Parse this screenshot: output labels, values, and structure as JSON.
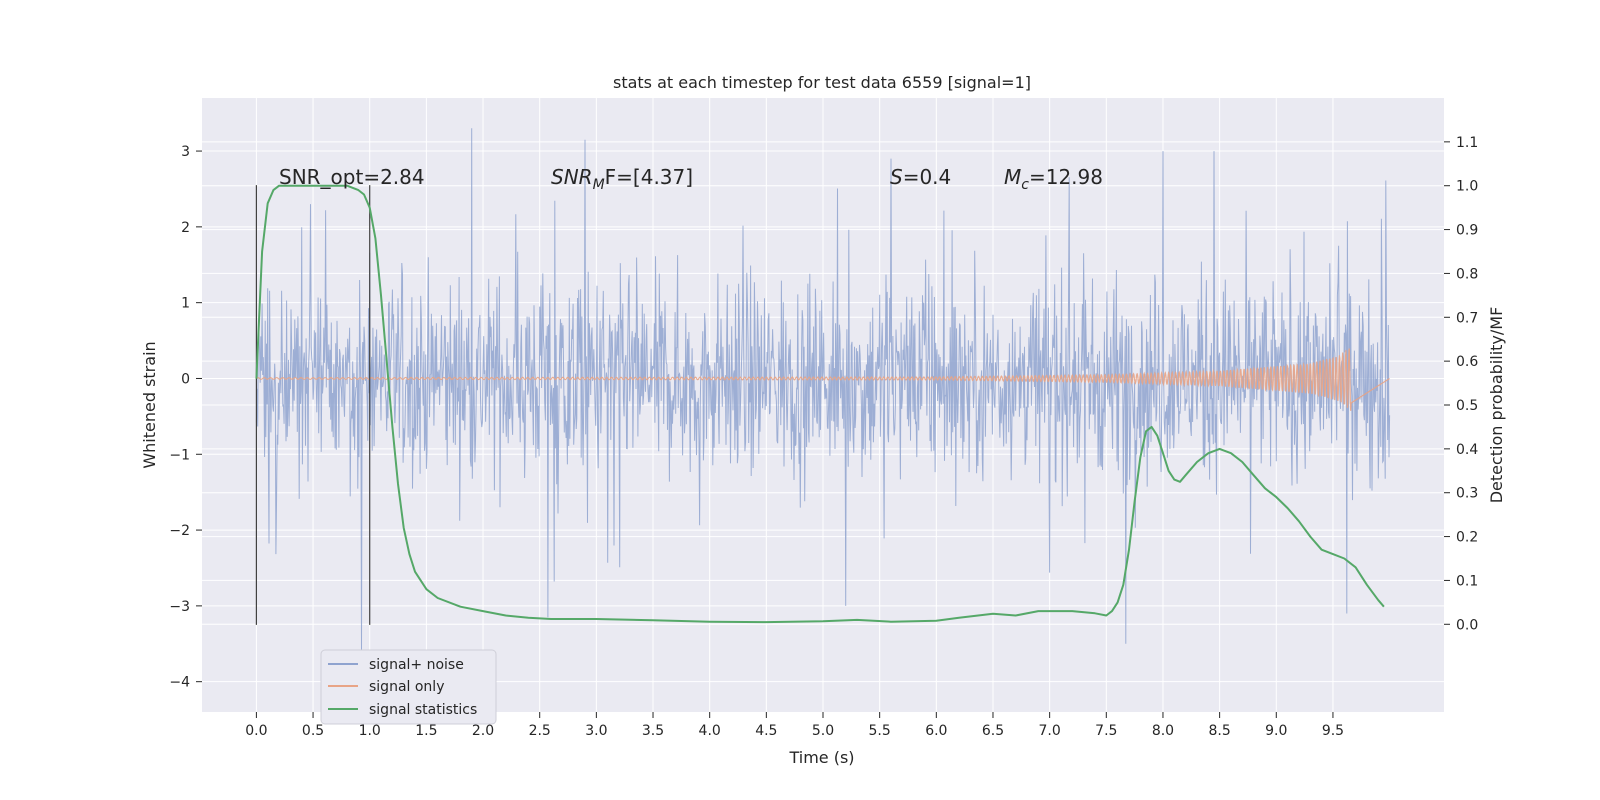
{
  "chart_data": {
    "type": "line",
    "title": "stats at each timestep for test data 6559 [signal=1]",
    "xlabel": "Time (s)",
    "ylabel": "Whitened strain",
    "y2label": "Detection probability/MF",
    "xlim": [
      -0.48,
      10.48
    ],
    "ylim": [
      -4.4,
      3.7
    ],
    "y2lim": [
      -0.2,
      1.2
    ],
    "x_ticks": [
      0.0,
      0.5,
      1.0,
      1.5,
      2.0,
      2.5,
      3.0,
      3.5,
      4.0,
      4.5,
      5.0,
      5.5,
      6.0,
      6.5,
      7.0,
      7.5,
      8.0,
      8.5,
      9.0,
      9.5
    ],
    "x_tick_labels": [
      "0.0",
      "0.5",
      "1.0",
      "1.5",
      "2.0",
      "2.5",
      "3.0",
      "3.5",
      "4.0",
      "4.5",
      "5.0",
      "5.5",
      "6.0",
      "6.5",
      "7.0",
      "7.5",
      "8.0",
      "8.5",
      "9.0",
      "9.5"
    ],
    "y_ticks": [
      3,
      2,
      1,
      0,
      -1,
      -2,
      -3,
      -4
    ],
    "y_tick_labels": [
      "3",
      "2",
      "1",
      "0",
      "−1",
      "−2",
      "−3",
      "−4"
    ],
    "y2_ticks": [
      1.1,
      1.0,
      0.9,
      0.8,
      0.7,
      0.6,
      0.5,
      0.4,
      0.3,
      0.2,
      0.1,
      0.0
    ],
    "y2_tick_labels": [
      "1.1",
      "1.0",
      "0.9",
      "0.8",
      "0.7",
      "0.6",
      "0.5",
      "0.4",
      "0.3",
      "0.2",
      "0.1",
      "0.0"
    ],
    "grid": true,
    "legend_position": "bottom-left",
    "series": [
      {
        "name": "signal+ noise",
        "color": "#8fa3cf",
        "axis": "left",
        "x_range": [
          0.0,
          10.0
        ],
        "typical_range": [
          -1.4,
          1.4
        ],
        "peaks_high": [
          {
            "x": 1.9,
            "y": 3.3
          },
          {
            "x": 2.9,
            "y": 3.15
          },
          {
            "x": 8.0,
            "y": 3.0
          },
          {
            "x": 8.45,
            "y": 3.0
          },
          {
            "x": 5.6,
            "y": 2.9
          }
        ],
        "peaks_low": [
          {
            "x": 0.93,
            "y": -3.6
          },
          {
            "x": 7.67,
            "y": -3.5
          },
          {
            "x": 2.57,
            "y": -3.15
          },
          {
            "x": 5.2,
            "y": -3.0
          },
          {
            "x": 9.62,
            "y": -3.1
          }
        ]
      },
      {
        "name": "signal only",
        "color": "#e8a486",
        "axis": "left",
        "x_range": [
          0.0,
          9.66
        ],
        "envelope": [
          [
            0.0,
            0.01
          ],
          [
            6.0,
            0.02
          ],
          [
            7.5,
            0.05
          ],
          [
            8.5,
            0.1
          ],
          [
            9.3,
            0.2
          ],
          [
            9.55,
            0.3
          ],
          [
            9.66,
            0.43
          ]
        ]
      },
      {
        "name": "signal statistics",
        "color": "#55a868",
        "axis": "right",
        "x": [
          0.0,
          0.05,
          0.1,
          0.15,
          0.2,
          0.3,
          0.5,
          0.8,
          0.9,
          0.95,
          1.0,
          1.05,
          1.1,
          1.15,
          1.2,
          1.25,
          1.3,
          1.35,
          1.4,
          1.5,
          1.6,
          1.8,
          2.0,
          2.2,
          2.4,
          2.6,
          2.8,
          3.0,
          3.2,
          3.5,
          4.0,
          4.5,
          5.0,
          5.3,
          5.6,
          6.0,
          6.2,
          6.5,
          6.7,
          6.9,
          7.2,
          7.4,
          7.5,
          7.55,
          7.6,
          7.65,
          7.7,
          7.75,
          7.8,
          7.85,
          7.9,
          7.95,
          8.0,
          8.05,
          8.1,
          8.15,
          8.2,
          8.3,
          8.4,
          8.5,
          8.6,
          8.7,
          8.8,
          8.9,
          9.0,
          9.1,
          9.2,
          9.3,
          9.4,
          9.5,
          9.6,
          9.7,
          9.8,
          9.9,
          9.95
        ],
        "y": [
          0.56,
          0.85,
          0.96,
          0.99,
          1.0,
          1.0,
          1.0,
          1.0,
          0.99,
          0.98,
          0.95,
          0.88,
          0.75,
          0.6,
          0.45,
          0.32,
          0.22,
          0.16,
          0.12,
          0.08,
          0.06,
          0.04,
          0.03,
          0.02,
          0.015,
          0.012,
          0.012,
          0.012,
          0.011,
          0.009,
          0.006,
          0.005,
          0.007,
          0.01,
          0.006,
          0.008,
          0.015,
          0.024,
          0.02,
          0.03,
          0.03,
          0.025,
          0.02,
          0.03,
          0.05,
          0.09,
          0.17,
          0.28,
          0.38,
          0.44,
          0.45,
          0.43,
          0.39,
          0.35,
          0.33,
          0.325,
          0.34,
          0.37,
          0.39,
          0.4,
          0.39,
          0.37,
          0.34,
          0.31,
          0.29,
          0.265,
          0.235,
          0.2,
          0.17,
          0.16,
          0.15,
          0.13,
          0.09,
          0.055,
          0.04
        ]
      }
    ],
    "vertical_markers": [
      {
        "x": 0.0,
        "ymin": -3.25,
        "ymax": 2.55
      },
      {
        "x": 1.0,
        "ymin": -3.25,
        "ymax": 2.55
      }
    ],
    "annotations": [
      {
        "id": "snr_opt",
        "text": "SNR_opt=2.84",
        "x": 0.2,
        "y": 2.55
      },
      {
        "id": "snr_mf",
        "prefix": "SNR",
        "sub": "M",
        "suffix": "F=[4.37]",
        "x": 2.6,
        "y": 2.55
      },
      {
        "id": "s",
        "prefix": "S",
        "suffix": "=0.4",
        "x": 5.6,
        "y": 2.55
      },
      {
        "id": "mc",
        "prefix": "M",
        "sub": "c",
        "suffix": "=12.98",
        "x": 6.6,
        "y": 2.55
      }
    ]
  }
}
